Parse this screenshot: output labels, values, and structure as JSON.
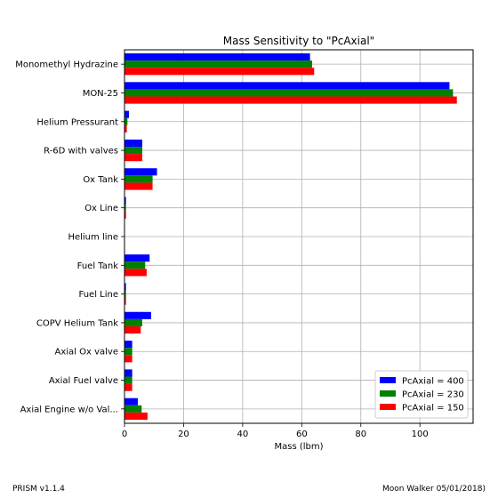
{
  "chart_data": {
    "type": "bar",
    "orientation": "horizontal",
    "title": "Mass Sensitivity to \"PcAxial\"",
    "xlabel": "Mass (lbm)",
    "ylabel": "",
    "xlim": [
      0,
      118
    ],
    "xticks": [
      0,
      20,
      40,
      60,
      80,
      100
    ],
    "grid": true,
    "legend_position": "lower-right",
    "categories": [
      "Monomethyl Hydrazine",
      "MON-25",
      "Helium Pressurant",
      "R-6D with valves",
      "Ox Tank",
      "Ox Line",
      "Helium line",
      "Fuel Tank",
      "Fuel Line",
      "COPV Helium Tank",
      "Axial Ox valve",
      "Axial Fuel valve",
      "Axial Engine w/o Val..."
    ],
    "series": [
      {
        "name": "PcAxial = 400",
        "color": "#0000ff",
        "values": [
          62.8,
          110.0,
          1.5,
          6.0,
          11.0,
          0.5,
          0.1,
          8.5,
          0.5,
          9.0,
          2.6,
          2.6,
          4.5
        ]
      },
      {
        "name": "PcAxial = 230",
        "color": "#008000",
        "values": [
          63.5,
          111.2,
          1.0,
          6.0,
          9.5,
          0.5,
          0.1,
          7.0,
          0.5,
          6.0,
          2.6,
          2.6,
          5.8
        ]
      },
      {
        "name": "PcAxial = 150",
        "color": "#ff0000",
        "values": [
          64.2,
          112.5,
          0.8,
          6.0,
          9.5,
          0.5,
          0.1,
          7.5,
          0.5,
          5.5,
          2.6,
          2.6,
          7.8
        ]
      }
    ]
  },
  "footer": {
    "left": "PRISM v1.1.4",
    "right": "Moon Walker 05/01/2018)"
  }
}
